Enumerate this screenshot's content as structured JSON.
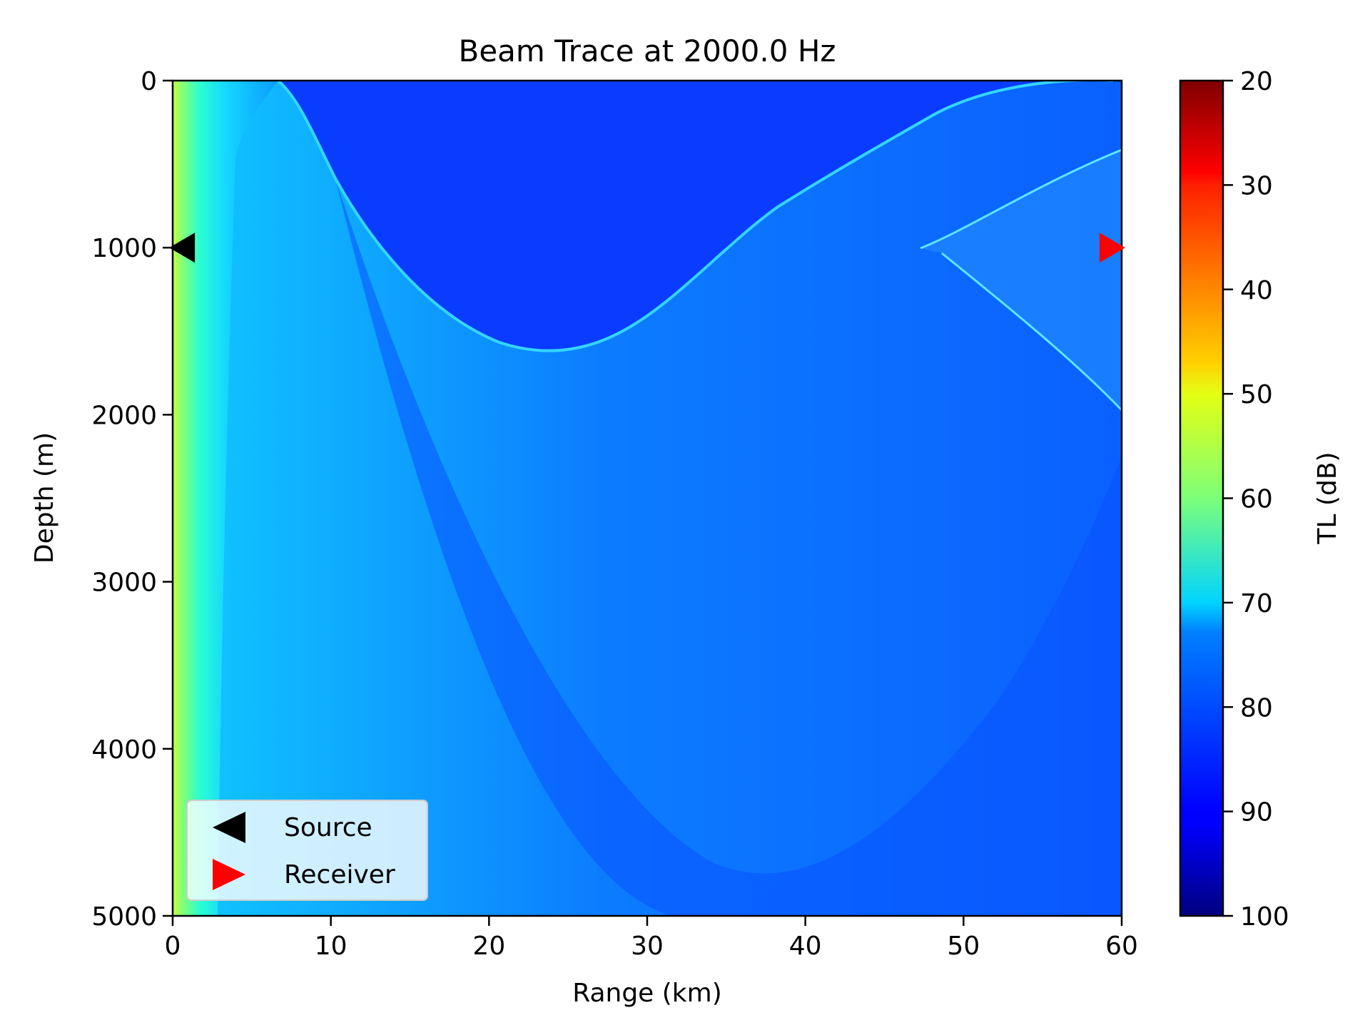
{
  "chart_data": {
    "type": "heatmap",
    "title": "Beam Trace at 2000.0 Hz",
    "xlabel": "Range (km)",
    "ylabel": "Depth (m)",
    "xlim": [
      0,
      60
    ],
    "ylim": [
      5000,
      0
    ],
    "x_ticks": [
      "0",
      "10",
      "20",
      "30",
      "40",
      "50",
      "60"
    ],
    "x_tick_values": [
      0,
      10,
      20,
      30,
      40,
      50,
      60
    ],
    "y_ticks": [
      "0",
      "1000",
      "2000",
      "3000",
      "4000",
      "5000"
    ],
    "y_tick_values": [
      0,
      1000,
      2000,
      3000,
      4000,
      5000
    ],
    "colorbar": {
      "label": "TL (dB)",
      "range": [
        20,
        100
      ],
      "ticks": [
        "20",
        "30",
        "40",
        "50",
        "60",
        "70",
        "80",
        "90",
        "100"
      ],
      "tick_values": [
        20,
        30,
        40,
        50,
        60,
        70,
        80,
        90,
        100
      ],
      "colormap": "jet",
      "reversed": true
    },
    "grid": false,
    "legend_placement": "lower-left",
    "markers": [
      {
        "name": "Source",
        "range_km": 0.5,
        "depth_m": 1000,
        "color": "#000000",
        "shape": "left-triangle"
      },
      {
        "name": "Receiver",
        "range_km": 59.5,
        "depth_m": 1000,
        "color": "#ff0000",
        "shape": "right-triangle"
      }
    ],
    "field_description_values": {
      "background_tl_db": 88,
      "near_source_tl_db": 58,
      "convergence_zone_range_km": 48,
      "convergence_zone_depth_m": 1000,
      "shadow_zone_max_depth_m": 1650,
      "shadow_zone_max_depth_range_km": 24
    }
  },
  "legend": {
    "source_label": "Source",
    "receiver_label": "Receiver"
  }
}
